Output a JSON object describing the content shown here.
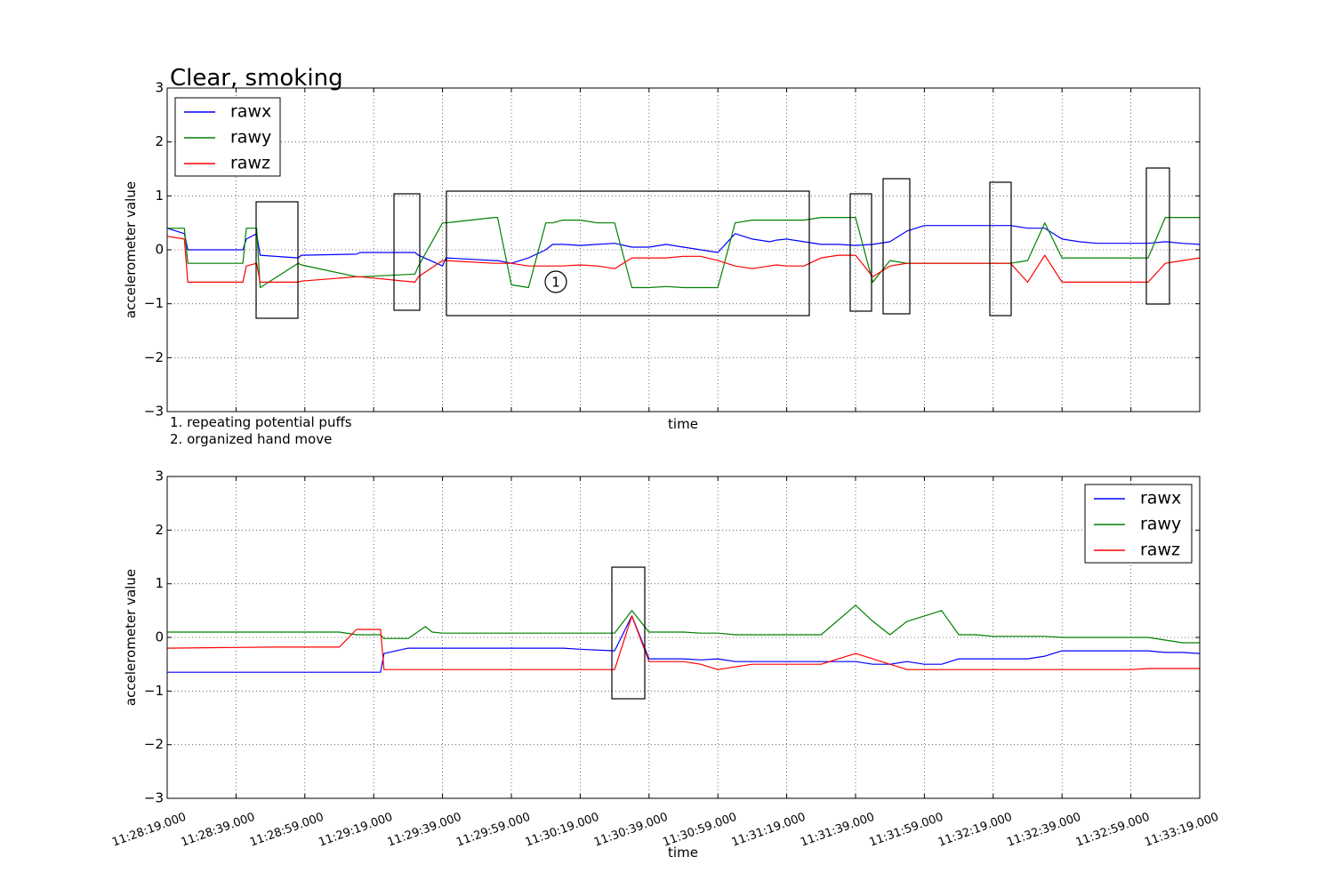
{
  "chart_data": [
    {
      "type": "line",
      "title": "Clear, smoking",
      "xlabel": "time",
      "ylabel": "accelerometer value",
      "ylim": [
        -3,
        3
      ],
      "yticks": [
        "3",
        "2",
        "1",
        "0",
        "−1",
        "−2",
        "−3"
      ],
      "xlim": [
        "11:28:19.000",
        "11:33:19.000"
      ],
      "grid": true,
      "legend_position": "upper-left",
      "notes": [
        "1. repeating potential puffs",
        "2. organized hand move"
      ],
      "annotation_marker": "1",
      "series": [
        {
          "name": "rawx",
          "color": "#0000ff",
          "x": [
            0,
            5,
            6,
            22,
            23,
            26,
            27,
            38,
            39,
            55,
            56,
            72,
            73,
            80,
            81,
            95,
            96,
            100,
            105,
            110,
            112,
            115,
            120,
            125,
            130,
            135,
            140,
            145,
            150,
            155,
            160,
            165,
            170,
            175,
            177,
            180,
            185,
            190,
            195,
            200,
            205,
            210,
            215,
            220,
            225,
            230,
            235,
            240,
            245,
            250,
            255,
            260,
            265,
            270,
            275,
            280,
            285,
            290,
            295,
            300
          ],
          "y": [
            0.4,
            0.3,
            0.0,
            0.0,
            0.2,
            0.3,
            -0.1,
            -0.15,
            -0.1,
            -0.08,
            -0.05,
            -0.05,
            -0.1,
            -0.3,
            -0.15,
            -0.2,
            -0.2,
            -0.25,
            -0.15,
            0.0,
            0.1,
            0.1,
            0.08,
            0.1,
            0.12,
            0.05,
            0.05,
            0.1,
            0.05,
            0.0,
            -0.05,
            0.3,
            0.2,
            0.15,
            0.18,
            0.2,
            0.15,
            0.1,
            0.1,
            0.08,
            0.1,
            0.15,
            0.35,
            0.45,
            0.45,
            0.45,
            0.45,
            0.45,
            0.45,
            0.4,
            0.4,
            0.2,
            0.15,
            0.12,
            0.12,
            0.12,
            0.12,
            0.15,
            0.12,
            0.1
          ]
        },
        {
          "name": "rawy",
          "color": "#008000",
          "x": [
            0,
            5,
            6,
            22,
            23,
            26,
            27,
            38,
            39,
            55,
            56,
            72,
            73,
            80,
            81,
            95,
            96,
            100,
            105,
            110,
            112,
            115,
            120,
            125,
            130,
            135,
            140,
            145,
            150,
            155,
            160,
            165,
            170,
            175,
            177,
            180,
            185,
            190,
            195,
            200,
            205,
            210,
            215,
            220,
            225,
            230,
            235,
            240,
            245,
            250,
            255,
            260,
            265,
            270,
            275,
            280,
            285,
            290,
            295,
            300
          ],
          "y": [
            0.4,
            0.4,
            -0.25,
            -0.25,
            0.4,
            0.4,
            -0.7,
            -0.25,
            -0.28,
            -0.5,
            -0.5,
            -0.45,
            -0.3,
            0.5,
            0.5,
            0.6,
            0.6,
            -0.65,
            -0.7,
            0.5,
            0.5,
            0.55,
            0.55,
            0.5,
            0.5,
            -0.7,
            -0.7,
            -0.68,
            -0.7,
            -0.7,
            -0.7,
            0.5,
            0.55,
            0.55,
            0.55,
            0.55,
            0.55,
            0.6,
            0.6,
            0.6,
            -0.6,
            -0.2,
            -0.25,
            -0.25,
            -0.25,
            -0.25,
            -0.25,
            -0.25,
            -0.25,
            -0.2,
            0.5,
            -0.15,
            -0.15,
            -0.15,
            -0.15,
            -0.15,
            -0.15,
            0.6,
            0.6,
            0.6
          ]
        },
        {
          "name": "rawz",
          "color": "#ff0000",
          "x": [
            0,
            5,
            6,
            22,
            23,
            26,
            27,
            38,
            39,
            55,
            56,
            72,
            73,
            80,
            81,
            95,
            96,
            100,
            105,
            110,
            112,
            115,
            120,
            125,
            130,
            135,
            140,
            145,
            150,
            155,
            160,
            165,
            170,
            175,
            177,
            180,
            185,
            190,
            195,
            200,
            205,
            210,
            215,
            220,
            225,
            230,
            235,
            240,
            245,
            250,
            255,
            260,
            265,
            270,
            275,
            280,
            285,
            290,
            295,
            300
          ],
          "y": [
            0.25,
            0.2,
            -0.6,
            -0.6,
            -0.3,
            -0.25,
            -0.6,
            -0.6,
            -0.58,
            -0.5,
            -0.5,
            -0.6,
            -0.5,
            -0.2,
            -0.2,
            -0.25,
            -0.25,
            -0.25,
            -0.3,
            -0.3,
            -0.3,
            -0.3,
            -0.28,
            -0.3,
            -0.35,
            -0.15,
            -0.15,
            -0.15,
            -0.12,
            -0.12,
            -0.2,
            -0.3,
            -0.35,
            -0.3,
            -0.28,
            -0.3,
            -0.3,
            -0.15,
            -0.1,
            -0.1,
            -0.5,
            -0.3,
            -0.25,
            -0.25,
            -0.25,
            -0.25,
            -0.25,
            -0.25,
            -0.25,
            -0.6,
            -0.1,
            -0.6,
            -0.6,
            -0.6,
            -0.6,
            -0.6,
            -0.6,
            -0.25,
            -0.2,
            -0.15
          ]
        }
      ]
    },
    {
      "type": "line",
      "title": "",
      "xlabel": "time",
      "ylabel": "accelerometer value",
      "ylim": [
        -3,
        3
      ],
      "yticks": [
        "3",
        "2",
        "1",
        "0",
        "−1",
        "−2",
        "−3"
      ],
      "xticks": [
        "11:28:19.000",
        "11:28:39.000",
        "11:28:59.000",
        "11:29:19.000",
        "11:29:39.000",
        "11:29:59.000",
        "11:30:19.000",
        "11:30:39.000",
        "11:30:59.000",
        "11:31:19.000",
        "11:31:39.000",
        "11:31:59.000",
        "11:32:19.000",
        "11:32:39.000",
        "11:32:59.000",
        "11:33:19.000"
      ],
      "grid": true,
      "legend_position": "upper-right",
      "series": [
        {
          "name": "rawx",
          "color": "#0000ff",
          "x": [
            0,
            30,
            50,
            55,
            62,
            63,
            70,
            75,
            77,
            80,
            90,
            100,
            115,
            120,
            130,
            135,
            140,
            150,
            155,
            160,
            165,
            170,
            175,
            180,
            185,
            190,
            200,
            205,
            210,
            215,
            220,
            225,
            230,
            235,
            240,
            250,
            255,
            260,
            280,
            285,
            290,
            295,
            300
          ],
          "y": [
            -0.65,
            -0.65,
            -0.65,
            -0.65,
            -0.65,
            -0.3,
            -0.2,
            -0.2,
            -0.2,
            -0.2,
            -0.2,
            -0.2,
            -0.2,
            -0.22,
            -0.25,
            0.4,
            -0.4,
            -0.4,
            -0.42,
            -0.4,
            -0.45,
            -0.45,
            -0.45,
            -0.45,
            -0.45,
            -0.45,
            -0.45,
            -0.5,
            -0.5,
            -0.45,
            -0.5,
            -0.5,
            -0.4,
            -0.4,
            -0.4,
            -0.4,
            -0.35,
            -0.25,
            -0.25,
            -0.25,
            -0.28,
            -0.28,
            -0.3
          ]
        },
        {
          "name": "rawy",
          "color": "#008000",
          "x": [
            0,
            30,
            50,
            55,
            62,
            63,
            70,
            75,
            77,
            80,
            90,
            100,
            115,
            120,
            130,
            135,
            140,
            150,
            155,
            160,
            165,
            170,
            175,
            180,
            185,
            190,
            200,
            205,
            210,
            215,
            220,
            225,
            230,
            235,
            240,
            250,
            255,
            260,
            280,
            285,
            290,
            295,
            300
          ],
          "y": [
            0.1,
            0.1,
            0.1,
            0.05,
            0.05,
            -0.02,
            -0.02,
            0.2,
            0.1,
            0.08,
            0.08,
            0.08,
            0.08,
            0.08,
            0.08,
            0.5,
            0.1,
            0.1,
            0.08,
            0.08,
            0.05,
            0.05,
            0.05,
            0.05,
            0.05,
            0.05,
            0.6,
            0.3,
            0.05,
            0.3,
            0.4,
            0.5,
            0.05,
            0.05,
            0.02,
            0.02,
            0.02,
            0.0,
            0.0,
            0.0,
            -0.05,
            -0.1,
            -0.1
          ]
        },
        {
          "name": "rawz",
          "color": "#ff0000",
          "x": [
            0,
            30,
            50,
            55,
            62,
            63,
            70,
            75,
            77,
            80,
            90,
            100,
            115,
            120,
            130,
            135,
            140,
            150,
            155,
            160,
            165,
            170,
            175,
            180,
            185,
            190,
            200,
            205,
            210,
            215,
            220,
            225,
            230,
            235,
            240,
            250,
            255,
            260,
            280,
            285,
            290,
            295,
            300
          ],
          "y": [
            -0.2,
            -0.18,
            -0.18,
            0.15,
            0.15,
            -0.6,
            -0.6,
            -0.6,
            -0.6,
            -0.6,
            -0.6,
            -0.6,
            -0.6,
            -0.6,
            -0.6,
            0.4,
            -0.45,
            -0.45,
            -0.5,
            -0.6,
            -0.55,
            -0.5,
            -0.5,
            -0.5,
            -0.5,
            -0.5,
            -0.3,
            -0.4,
            -0.5,
            -0.6,
            -0.6,
            -0.6,
            -0.6,
            -0.6,
            -0.6,
            -0.6,
            -0.6,
            -0.6,
            -0.6,
            -0.58,
            -0.58,
            -0.58,
            -0.58
          ]
        }
      ]
    }
  ]
}
